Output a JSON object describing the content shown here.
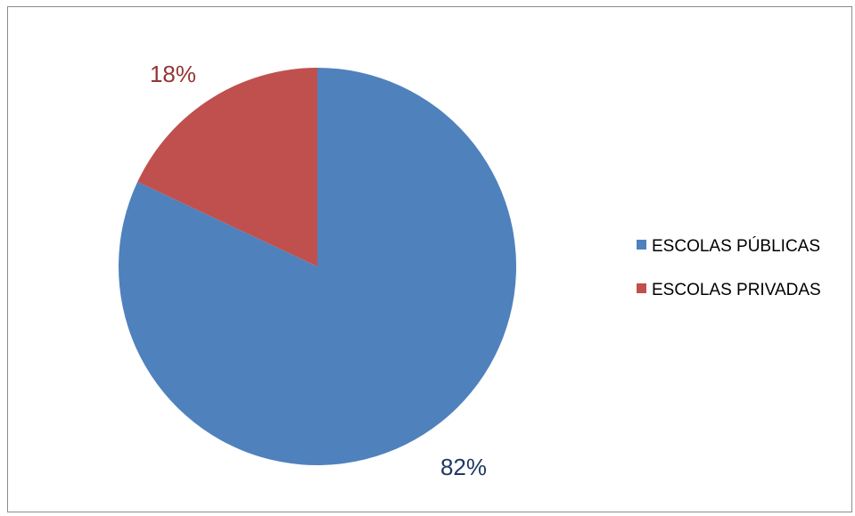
{
  "chart_data": {
    "type": "pie",
    "title": "",
    "categories": [
      "ESCOLAS PÚBLICAS",
      "ESCOLAS PRIVADAS"
    ],
    "values": [
      82,
      18
    ],
    "data_labels": [
      "82%",
      "18%"
    ],
    "colors": [
      "#4f81bd",
      "#c0504d"
    ],
    "label_colors": [
      "#1f3864",
      "#943634"
    ],
    "start_angle_deg": 0,
    "direction": "clockwise",
    "legend_position": "right"
  }
}
